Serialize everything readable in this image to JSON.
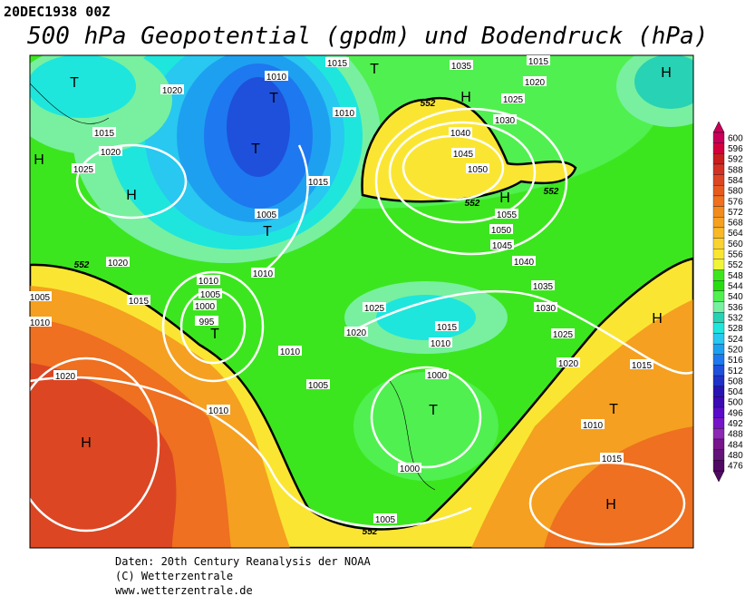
{
  "header": {
    "date": "20DEC1938 00Z",
    "title": "500 hPa Geopotential (gpdm) und Bodendruck (hPa)"
  },
  "footer": {
    "lines": [
      "Daten: 20th Century Reanalysis der NOAA",
      "(C) Wetterzentrale",
      "www.wetterzentrale.de"
    ]
  },
  "map": {
    "isobar_labels": [
      1015,
      1015,
      1035,
      1020,
      1025,
      1030,
      1040,
      1045,
      1050,
      1055,
      1050,
      1045,
      1040,
      1035,
      1030,
      1025,
      1020,
      1015,
      1010,
      1015,
      1010,
      1020,
      1015,
      1020,
      1025,
      1010,
      1015,
      1005,
      1010,
      1020,
      1015,
      1005,
      1010,
      1010,
      1005,
      1000,
      995,
      1010,
      1005,
      1025,
      1020,
      1015,
      1010,
      1000,
      1000,
      1005,
      1020,
      1010
    ],
    "pressure_centers": [
      "T",
      "H",
      "H",
      "T",
      "T",
      "T",
      "T",
      "T",
      "H",
      "H",
      "H",
      "H",
      "T",
      "T",
      "H",
      "H"
    ],
    "contour_labels": [
      552,
      552,
      552,
      552,
      552
    ]
  },
  "legend": {
    "values": [
      600,
      596,
      592,
      588,
      584,
      580,
      576,
      572,
      568,
      564,
      560,
      556,
      552,
      548,
      544,
      540,
      536,
      532,
      528,
      524,
      520,
      516,
      512,
      508,
      504,
      500,
      496,
      492,
      488,
      484,
      480,
      476
    ],
    "colors": [
      "#c8005a",
      "#d2003c",
      "#c81e1e",
      "#d23223",
      "#dc4623",
      "#e65a1e",
      "#ee7020",
      "#f28a1e",
      "#f5a020",
      "#f8b828",
      "#fad232",
      "#fae632",
      "#f0f53c",
      "#3ce61e",
      "#28dc14",
      "#50f050",
      "#78f0a0",
      "#28d2b4",
      "#1ee6dc",
      "#28c8f0",
      "#1ea0f0",
      "#1e78f0",
      "#1e50dc",
      "#1e32c8",
      "#2814b4",
      "#3c0ab4",
      "#5a0ac8",
      "#7814c8",
      "#8c28b4",
      "#78148c",
      "#641478",
      "#500a64"
    ]
  }
}
